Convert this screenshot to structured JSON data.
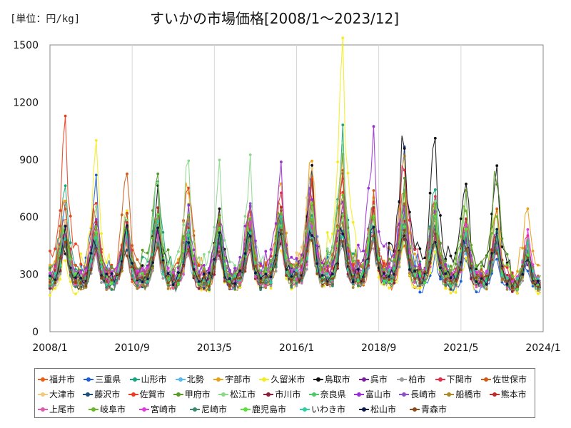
{
  "chart_data": {
    "type": "line",
    "title": "すいかの市場価格[2008/1～2023/12]",
    "unit_label": "[単位：円/kg]",
    "xlabel": "",
    "ylabel": "",
    "ylim": [
      0,
      1500
    ],
    "yticks": [
      0,
      300,
      600,
      900,
      1200,
      1500
    ],
    "xrange": [
      "2008/1",
      "2024/1"
    ],
    "xticks": [
      "2008/1",
      "2010/9",
      "2013/5",
      "2016/1",
      "2018/9",
      "2021/5",
      "2024/1"
    ],
    "grid": "vertical",
    "legend_position": "bottom",
    "series_values_note": "annual seasonal peaks (Jun–Jul) estimated from the plot; non-peak months follow the seasonal low",
    "series": [
      {
        "name": "福井市",
        "color": "#E8601C",
        "peaks": [
          520,
          480,
          430,
          460,
          470,
          440,
          500,
          560,
          600,
          520,
          480,
          470,
          520,
          560,
          500,
          430
        ]
      },
      {
        "name": "三重県",
        "color": "#1F5FD6",
        "peaks": [
          650,
          750,
          520,
          600,
          510,
          440,
          520,
          570,
          820,
          790,
          620,
          930,
          380,
          380,
          420,
          360
        ]
      },
      {
        "name": "山形市",
        "color": "#16A57C",
        "peaks": [
          800,
          560,
          620,
          820,
          480,
          590,
          600,
          630,
          550,
          1000,
          560,
          500,
          720,
          560,
          480,
          420
        ]
      },
      {
        "name": "北勢",
        "color": "#5BB8F0",
        "peaks": [
          620,
          520,
          540,
          500,
          420,
          450,
          520,
          580,
          560,
          520,
          500,
          760,
          620,
          450,
          440,
          380
        ]
      },
      {
        "name": "宇部市",
        "color": "#E8A21A",
        "peaks": [
          680,
          540,
          520,
          480,
          770,
          560,
          540,
          760,
          870,
          880,
          640,
          860,
          520,
          500,
          470,
          640
        ]
      },
      {
        "name": "久留米市",
        "color": "#F4EC1F",
        "peaks": [
          360,
          910,
          620,
          540,
          450,
          430,
          470,
          480,
          500,
          1390,
          480,
          450,
          420,
          380,
          700,
          390
        ]
      },
      {
        "name": "鳥取市",
        "color": "#111111",
        "peaks": [
          460,
          440,
          600,
          700,
          460,
          650,
          480,
          520,
          840,
          630,
          560,
          1050,
          960,
          810,
          850,
          420
        ]
      },
      {
        "name": "呉市",
        "color": "#7A1FA2",
        "peaks": [
          480,
          500,
          520,
          530,
          470,
          460,
          520,
          590,
          640,
          660,
          720,
          650,
          560,
          480,
          480,
          380
        ]
      },
      {
        "name": "柏市",
        "color": "#9A9A9A",
        "peaks": [
          420,
          400,
          420,
          430,
          380,
          400,
          420,
          440,
          460,
          450,
          480,
          500,
          470,
          430,
          420,
          360
        ]
      },
      {
        "name": "下関市",
        "color": "#E0304A",
        "peaks": [
          600,
          520,
          570,
          560,
          520,
          480,
          560,
          700,
          640,
          740,
          620,
          880,
          700,
          560,
          540,
          460
        ]
      },
      {
        "name": "佐世保市",
        "color": "#D05A1A",
        "peaks": [
          720,
          640,
          860,
          580,
          560,
          520,
          620,
          720,
          760,
          800,
          680,
          720,
          680,
          540,
          600,
          430
        ]
      },
      {
        "name": "大津市",
        "color": "#F2C97A",
        "peaks": [
          560,
          520,
          540,
          520,
          500,
          480,
          540,
          600,
          920,
          640,
          600,
          620,
          560,
          500,
          480,
          420
        ]
      },
      {
        "name": "藤沢市",
        "color": "#1F4E79",
        "peaks": [
          480,
          460,
          470,
          480,
          450,
          440,
          470,
          500,
          520,
          500,
          500,
          520,
          490,
          460,
          450,
          400
        ]
      },
      {
        "name": "佐賀市",
        "color": "#E8401C",
        "peaks": [
          1020,
          650,
          620,
          560,
          760,
          520,
          600,
          620,
          760,
          700,
          680,
          640,
          600,
          520,
          520,
          440
        ]
      },
      {
        "name": "甲府市",
        "color": "#5A9A2A",
        "peaks": [
          540,
          520,
          560,
          820,
          600,
          520,
          560,
          620,
          660,
          900,
          620,
          720,
          660,
          700,
          860,
          420
        ]
      },
      {
        "name": "松江市",
        "color": "#8ED88E",
        "peaks": [
          560,
          600,
          580,
          810,
          890,
          860,
          860,
          620,
          700,
          1000,
          640,
          600,
          620,
          580,
          540,
          440
        ]
      },
      {
        "name": "市川市",
        "color": "#8A1F3A",
        "peaks": [
          460,
          450,
          460,
          480,
          440,
          430,
          470,
          500,
          520,
          500,
          510,
          520,
          490,
          460,
          450,
          400
        ]
      },
      {
        "name": "奈良県",
        "color": "#4CC76A",
        "peaks": [
          520,
          500,
          520,
          540,
          500,
          490,
          520,
          560,
          580,
          560,
          560,
          580,
          540,
          500,
          490,
          430
        ]
      },
      {
        "name": "富山市",
        "color": "#9B30D0",
        "peaks": [
          540,
          620,
          560,
          580,
          600,
          640,
          700,
          850,
          760,
          680,
          1010,
          700,
          620,
          560,
          520,
          430
        ]
      },
      {
        "name": "長崎市",
        "color": "#8A50C8",
        "peaks": [
          500,
          480,
          500,
          520,
          560,
          540,
          620,
          580,
          600,
          580,
          620,
          600,
          560,
          520,
          500,
          420
        ]
      },
      {
        "name": "船橋市",
        "color": "#A88A2A",
        "peaks": [
          480,
          460,
          480,
          500,
          460,
          450,
          480,
          520,
          540,
          520,
          520,
          540,
          510,
          480,
          470,
          410
        ]
      },
      {
        "name": "熊本市",
        "color": "#B8302A",
        "peaks": [
          560,
          540,
          560,
          580,
          540,
          520,
          560,
          600,
          620,
          600,
          600,
          620,
          580,
          540,
          530,
          450
        ]
      },
      {
        "name": "上尾市",
        "color": "#E05AB0",
        "peaks": [
          460,
          440,
          460,
          480,
          440,
          430,
          460,
          500,
          520,
          500,
          500,
          520,
          490,
          460,
          450,
          400
        ]
      },
      {
        "name": "岐阜市",
        "color": "#6AB82A",
        "peaks": [
          560,
          520,
          540,
          600,
          620,
          560,
          600,
          640,
          660,
          760,
          620,
          660,
          600,
          700,
          640,
          440
        ]
      },
      {
        "name": "宮崎市",
        "color": "#E03AE0",
        "peaks": [
          520,
          500,
          520,
          540,
          500,
          490,
          520,
          560,
          580,
          560,
          560,
          580,
          540,
          500,
          490,
          480
        ]
      },
      {
        "name": "尼崎市",
        "color": "#3A8A6A",
        "peaks": [
          480,
          460,
          480,
          500,
          460,
          450,
          480,
          520,
          540,
          520,
          520,
          540,
          510,
          480,
          470,
          410
        ]
      },
      {
        "name": "鹿児島市",
        "color": "#5AE03A",
        "peaks": [
          540,
          520,
          540,
          560,
          520,
          510,
          540,
          580,
          600,
          580,
          580,
          600,
          560,
          520,
          510,
          440
        ]
      },
      {
        "name": "いわき市",
        "color": "#2AD0A0",
        "peaks": [
          500,
          480,
          500,
          520,
          480,
          470,
          500,
          540,
          560,
          540,
          540,
          560,
          520,
          490,
          480,
          420
        ]
      },
      {
        "name": "松山市",
        "color": "#0A1A4A",
        "peaks": [
          500,
          480,
          500,
          520,
          480,
          470,
          500,
          540,
          560,
          540,
          540,
          560,
          520,
          490,
          480,
          420
        ]
      },
      {
        "name": "青森市",
        "color": "#8A4A1A",
        "peaks": [
          440,
          420,
          440,
          460,
          420,
          410,
          440,
          480,
          500,
          480,
          480,
          500,
          470,
          440,
          430,
          380
        ]
      }
    ]
  }
}
